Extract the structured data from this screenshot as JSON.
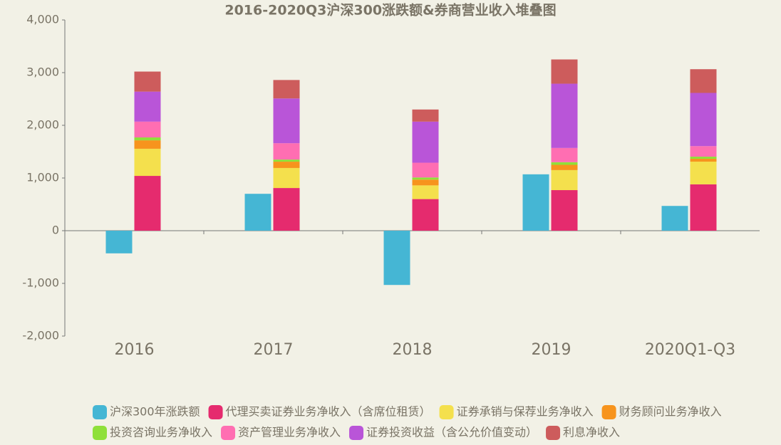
{
  "chart_data": {
    "type": "stacked-grouped-bar",
    "title": "2016-2020Q3沪深300涨跌额&券商营业收入堆叠图",
    "categories": [
      "2016",
      "2017",
      "2018",
      "2019",
      "2020Q1-Q3"
    ],
    "ylim": [
      -2000,
      4000
    ],
    "yticks": [
      {
        "value": 4000,
        "label": "4,000"
      },
      {
        "value": 3000,
        "label": "3,000"
      },
      {
        "value": 2000,
        "label": "2,000"
      },
      {
        "value": 1000,
        "label": "1,000"
      },
      0,
      {
        "value": -1000,
        "label": "-1,000"
      },
      {
        "value": -2000,
        "label": "-2,000"
      }
    ],
    "legend": "bottom",
    "series": [
      {
        "name": "沪深300年涨跌额",
        "color": "#45b6d4",
        "stack": "a",
        "values": [
          -430,
          700,
          -1030,
          1070,
          470
        ]
      },
      {
        "name": "代理买卖证券业务净收入（含席位租赁）",
        "color": "#e52b6e",
        "stack": "b",
        "values": [
          1040,
          810,
          600,
          770,
          880
        ]
      },
      {
        "name": "证券承销与保荐业务净收入",
        "color": "#f4e04d",
        "stack": "b",
        "values": [
          515,
          380,
          260,
          380,
          430
        ]
      },
      {
        "name": "财务顾问业务净收入",
        "color": "#f7941d",
        "stack": "b",
        "values": [
          160,
          120,
          110,
          100,
          55
        ]
      },
      {
        "name": "投资咨询业务净收入",
        "color": "#8fe03a",
        "stack": "b",
        "values": [
          55,
          40,
          40,
          50,
          40
        ]
      },
      {
        "name": "资产管理业务净收入",
        "color": "#ff6eb2",
        "stack": "b",
        "values": [
          300,
          310,
          280,
          270,
          200
        ]
      },
      {
        "name": "证券投资收益（含公允价值变动）",
        "color": "#b955d8",
        "stack": "b",
        "values": [
          570,
          850,
          780,
          1220,
          1010
        ]
      },
      {
        "name": "利息净收入",
        "color": "#cd5c5c",
        "stack": "b",
        "values": [
          380,
          350,
          230,
          460,
          450
        ]
      }
    ]
  }
}
